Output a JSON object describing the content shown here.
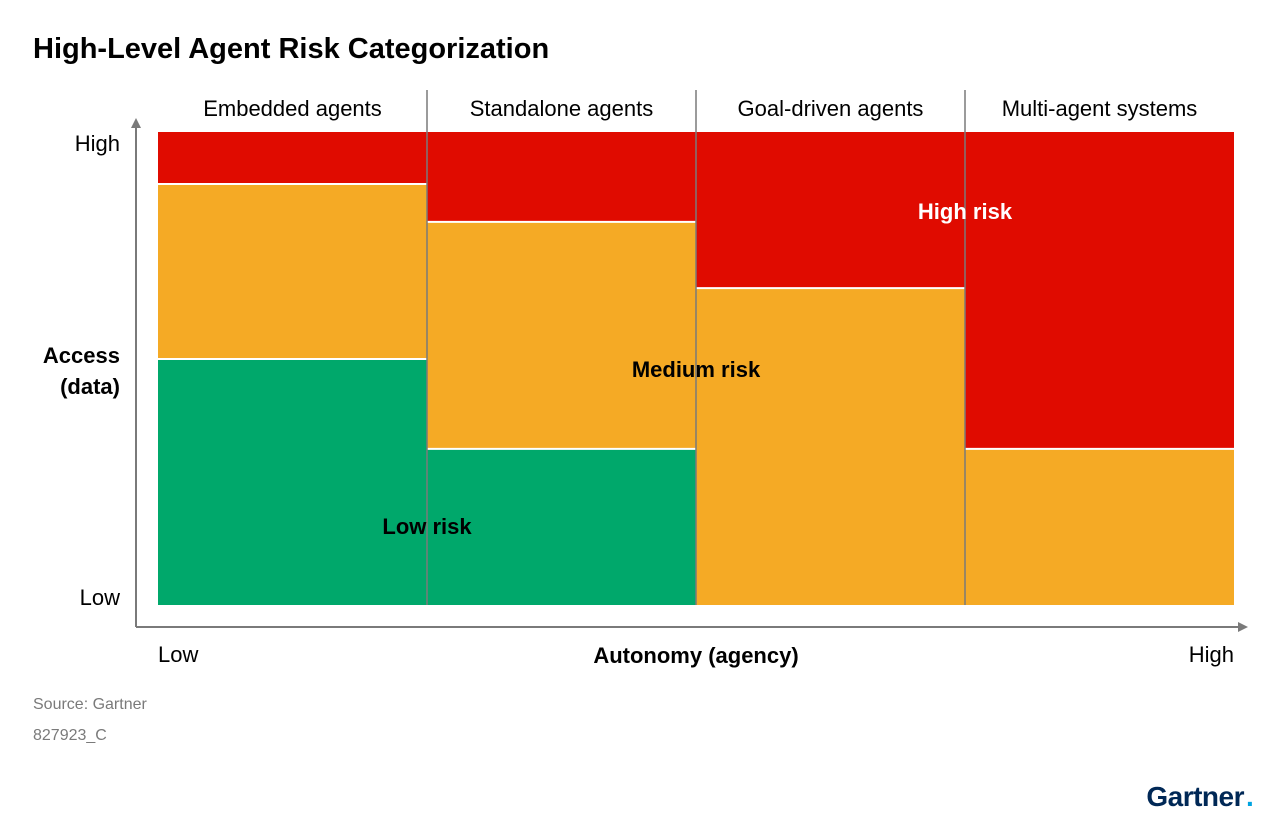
{
  "chart_data": {
    "type": "stacked-bar",
    "title": "High-Level Agent Risk Categorization",
    "xlabel": "Autonomy (agency)",
    "ylabel_lines": [
      "Access",
      "(data)"
    ],
    "x_low_label": "Low",
    "x_high_label": "High",
    "y_low_label": "Low",
    "y_high_label": "High",
    "ylim": [
      0,
      100
    ],
    "categories": [
      "Embedded agents",
      "Standalone agents",
      "Goal-driven agents",
      "Multi-agent systems"
    ],
    "series": [
      {
        "name": "Low risk",
        "color": "#00a86b",
        "values": [
          52,
          33,
          0,
          0
        ]
      },
      {
        "name": "Medium risk",
        "color": "#f5aa25",
        "values": [
          37,
          48,
          67,
          33
        ]
      },
      {
        "name": "High risk",
        "color": "#e00b00",
        "values": [
          11,
          19,
          33,
          67
        ]
      }
    ],
    "zone_labels": [
      {
        "text": "Low risk",
        "color": "#000000"
      },
      {
        "text": "Medium risk",
        "color": "#000000"
      },
      {
        "text": "High risk",
        "color": "#ffffff"
      }
    ],
    "grid": false,
    "legend": "none"
  },
  "footer": {
    "source": "Source: Gartner",
    "id": "827923_C"
  },
  "logo": {
    "text": "Gartner",
    "mark": ".",
    "color": "#002856",
    "mark_color": "#00a3e0"
  }
}
